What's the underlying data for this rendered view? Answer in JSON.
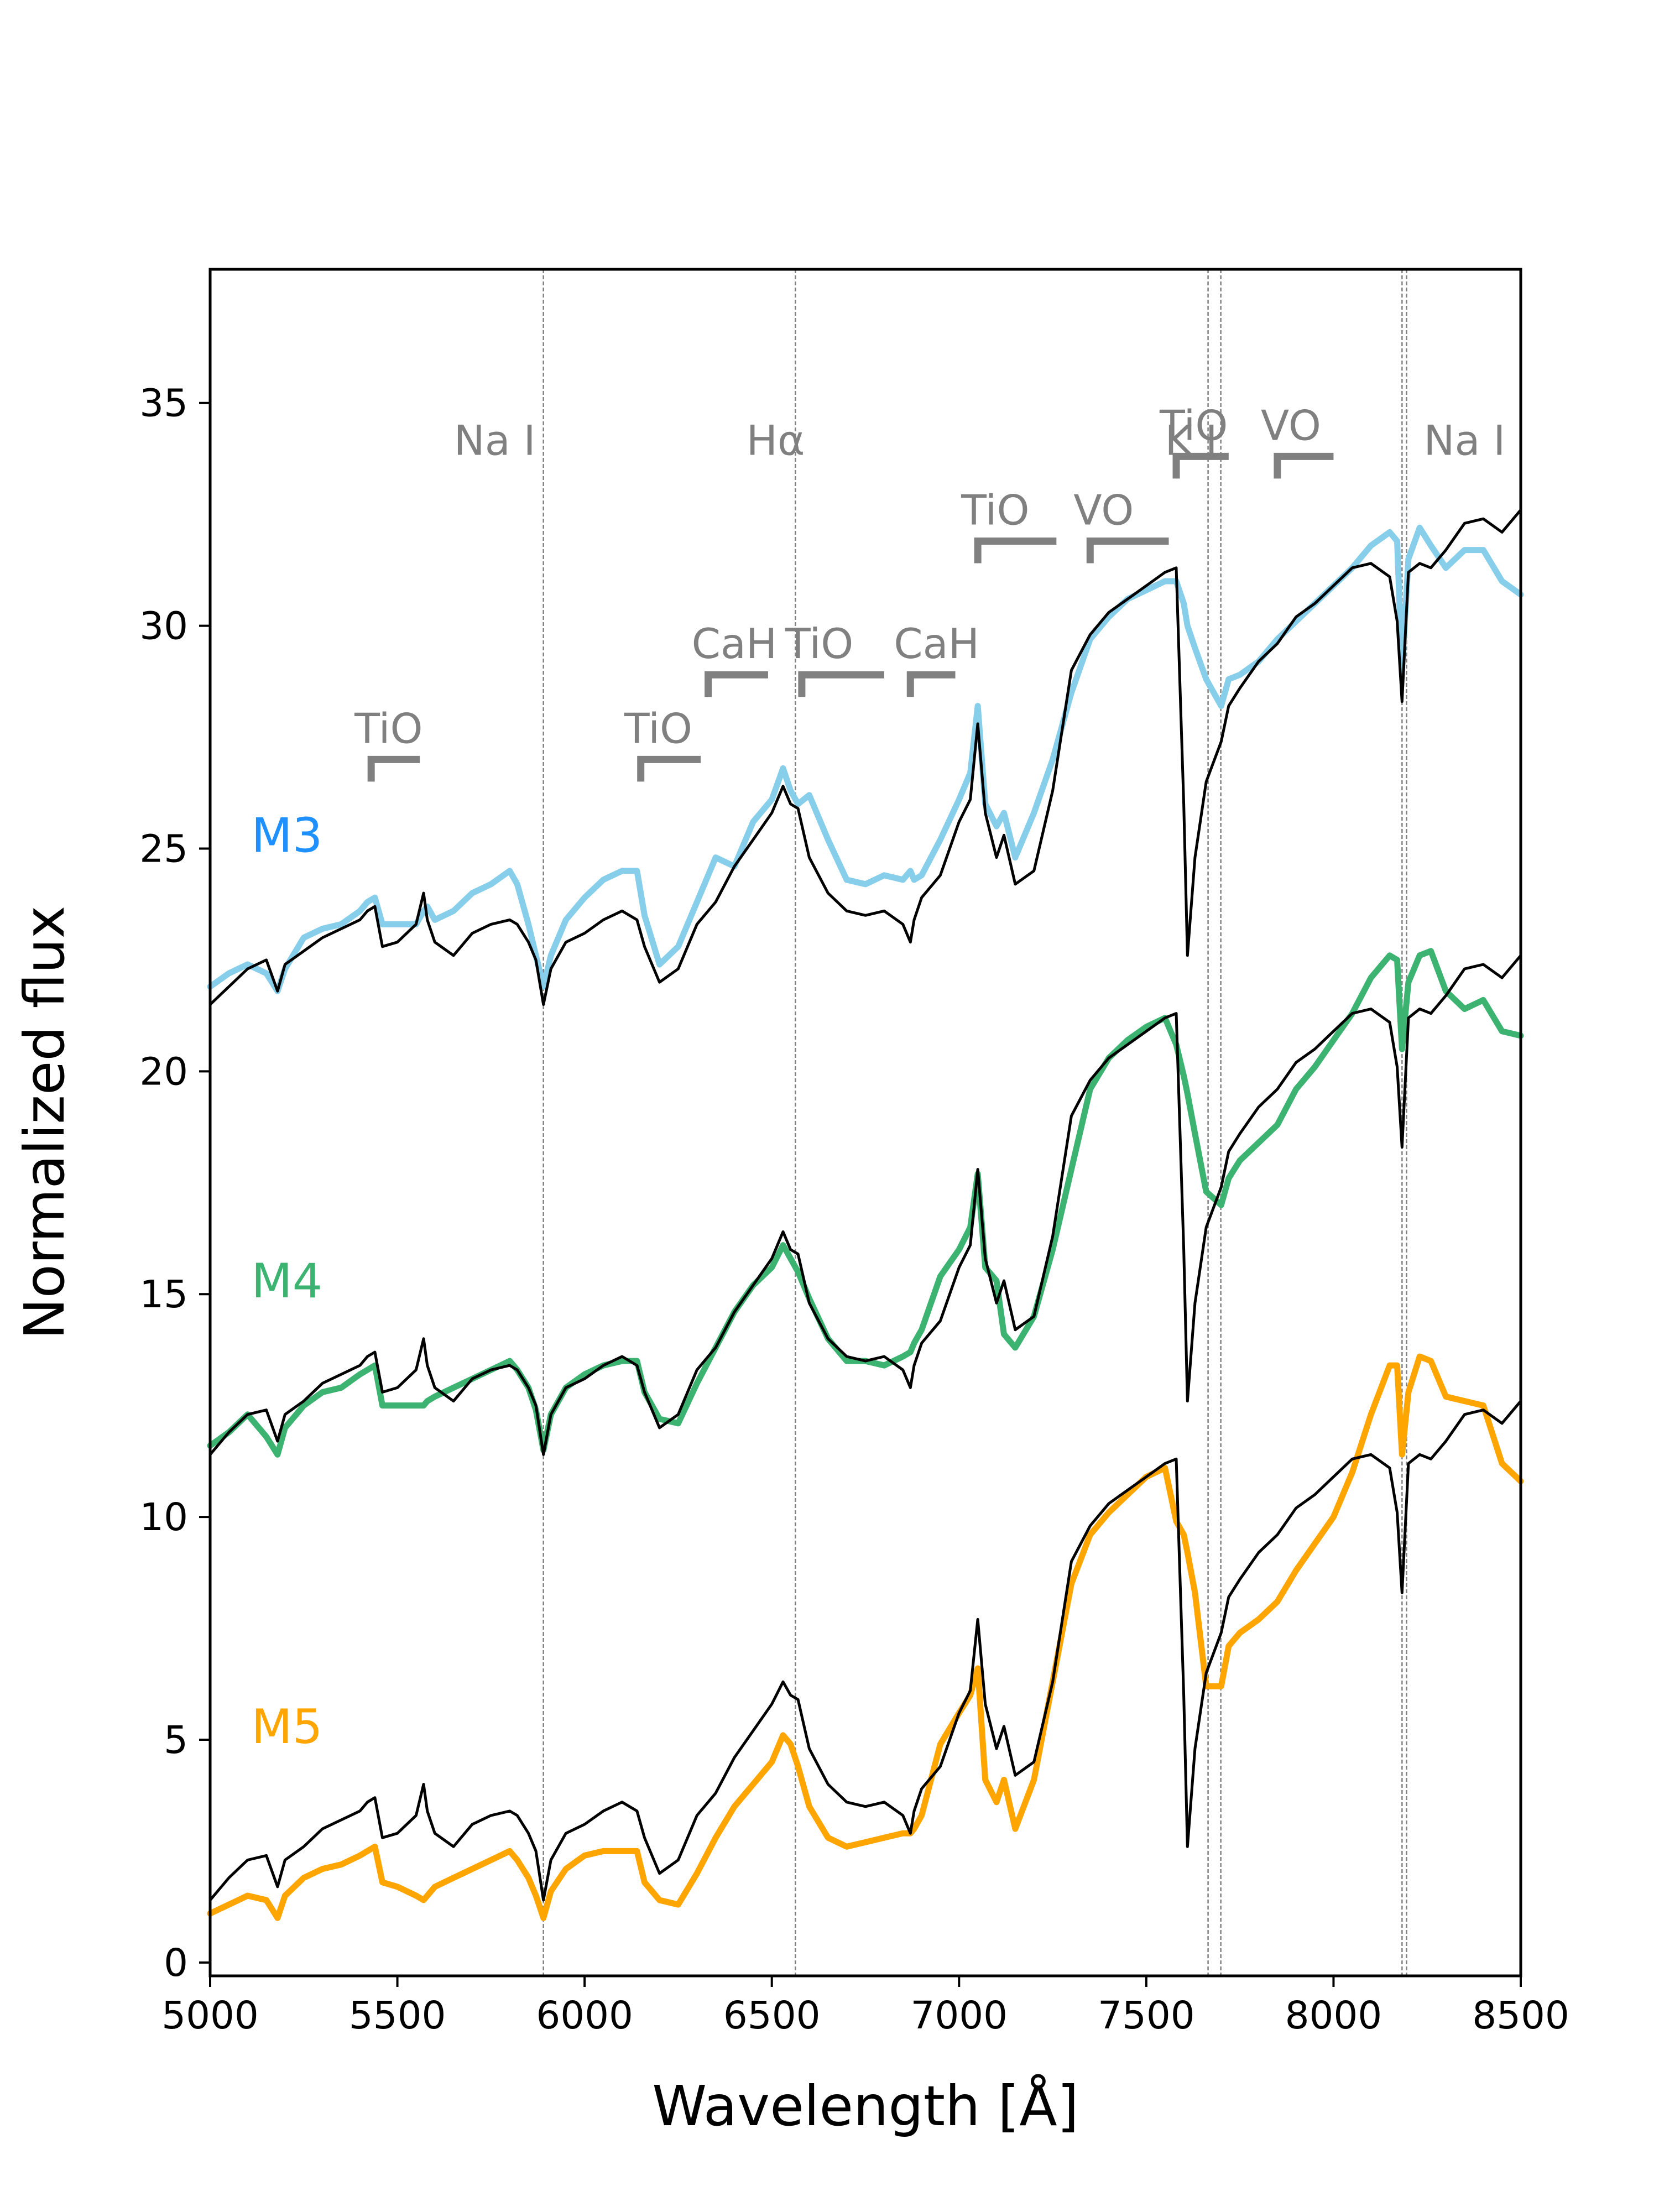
{
  "colors": {
    "M3": "#87ceeb",
    "M4": "#3cb371",
    "M5": "#ffa500",
    "template": "#000000",
    "annotation": "#808080"
  },
  "chart_data": {
    "type": "line",
    "title": "",
    "xlabel": "Wavelength [Å]",
    "ylabel": "Normalized flux",
    "xlim": [
      5000,
      8500
    ],
    "ylim": [
      -0.3,
      38
    ],
    "grid": false,
    "xticks": [
      5000,
      5500,
      6000,
      6500,
      7000,
      7500,
      8000,
      8500
    ],
    "yticks": [
      0,
      5,
      10,
      15,
      20,
      25,
      30,
      35
    ],
    "series_labels": [
      {
        "text": "M3",
        "x": 5110,
        "y": 25.3,
        "color": "#1e90ff"
      },
      {
        "text": "M4",
        "x": 5110,
        "y": 15.3,
        "color": "#3cb371"
      },
      {
        "text": "M5",
        "x": 5110,
        "y": 5.3,
        "color": "#ffa500"
      }
    ],
    "line_markers": [
      {
        "label": "Na I",
        "wavelengths": [
          5890
        ],
        "label_x": 5760
      },
      {
        "label": "Hα",
        "wavelengths": [
          6563
        ],
        "label_x": 6510
      },
      {
        "label": "K I",
        "wavelengths": [
          7665,
          7699
        ],
        "label_x": 7620
      },
      {
        "label": "Na I",
        "wavelengths": [
          8183,
          8195
        ],
        "label_x": 8350
      }
    ],
    "bands": [
      {
        "label": "TiO",
        "x_start": 5430,
        "x_end": 5560,
        "y": 27.0
      },
      {
        "label": "TiO",
        "x_start": 6150,
        "x_end": 6310,
        "y": 27.0
      },
      {
        "label": "CaH",
        "x_start": 6330,
        "x_end": 6490,
        "y": 28.9
      },
      {
        "label": "TiO",
        "x_start": 6580,
        "x_end": 6800,
        "y": 28.9
      },
      {
        "label": "CaH",
        "x_start": 6870,
        "x_end": 6990,
        "y": 28.9
      },
      {
        "label": "TiO",
        "x_start": 7050,
        "x_end": 7260,
        "y": 31.9
      },
      {
        "label": "VO",
        "x_start": 7350,
        "x_end": 7560,
        "y": 31.9
      },
      {
        "label": "TiO",
        "x_start": 7580,
        "x_end": 7720,
        "y": 33.8
      },
      {
        "label": "VO",
        "x_start": 7850,
        "x_end": 8000,
        "y": 33.8
      }
    ],
    "x": [
      5000,
      5050,
      5100,
      5150,
      5180,
      5200,
      5250,
      5300,
      5350,
      5400,
      5420,
      5440,
      5460,
      5500,
      5550,
      5570,
      5580,
      5600,
      5650,
      5700,
      5750,
      5800,
      5820,
      5850,
      5870,
      5890,
      5910,
      5950,
      6000,
      6050,
      6100,
      6140,
      6160,
      6200,
      6250,
      6300,
      6350,
      6400,
      6450,
      6500,
      6530,
      6550,
      6570,
      6600,
      6650,
      6700,
      6750,
      6800,
      6850,
      6870,
      6880,
      6900,
      6950,
      7000,
      7030,
      7050,
      7070,
      7100,
      7120,
      7150,
      7200,
      7250,
      7300,
      7350,
      7400,
      7450,
      7500,
      7550,
      7580,
      7600,
      7610,
      7630,
      7660,
      7700,
      7720,
      7750,
      7800,
      7850,
      7900,
      7950,
      8000,
      8050,
      8100,
      8150,
      8170,
      8183,
      8200,
      8230,
      8260,
      8300,
      8350,
      8400,
      8450,
      8500
    ],
    "series": [
      {
        "name": "M3",
        "role": "standard",
        "values": [
          21.9,
          22.2,
          22.4,
          22.2,
          21.8,
          22.3,
          23.0,
          23.2,
          23.3,
          23.6,
          23.8,
          23.9,
          23.3,
          23.3,
          23.3,
          23.6,
          23.7,
          23.4,
          23.6,
          24.0,
          24.2,
          24.5,
          24.2,
          23.3,
          22.6,
          21.9,
          22.6,
          23.4,
          23.9,
          24.3,
          24.5,
          24.5,
          23.5,
          22.4,
          22.8,
          23.8,
          24.8,
          24.6,
          25.6,
          26.1,
          26.8,
          26.3,
          26.0,
          26.2,
          25.2,
          24.3,
          24.2,
          24.4,
          24.3,
          24.5,
          24.3,
          24.4,
          25.2,
          26.1,
          26.7,
          28.2,
          26.0,
          25.5,
          25.8,
          24.8,
          25.8,
          27.0,
          28.5,
          29.7,
          30.2,
          30.6,
          30.8,
          31.0,
          31.0,
          30.5,
          30.0,
          29.5,
          28.8,
          28.2,
          28.8,
          28.9,
          29.2,
          29.7,
          30.1,
          30.5,
          30.9,
          31.3,
          31.8,
          32.1,
          31.9,
          29.0,
          31.5,
          32.2,
          31.8,
          31.3,
          31.7,
          31.7,
          31.0,
          30.7
        ]
      },
      {
        "name": "M3",
        "role": "template",
        "values": [
          21.5,
          21.9,
          22.3,
          22.5,
          21.8,
          22.4,
          22.7,
          23.0,
          23.2,
          23.4,
          23.6,
          23.7,
          22.8,
          22.9,
          23.3,
          24.0,
          23.4,
          22.9,
          22.6,
          23.1,
          23.3,
          23.4,
          23.3,
          22.9,
          22.5,
          21.5,
          22.3,
          22.9,
          23.1,
          23.4,
          23.6,
          23.4,
          22.8,
          22.0,
          22.3,
          23.3,
          23.8,
          24.6,
          25.2,
          25.8,
          26.4,
          26.0,
          25.9,
          24.8,
          24.0,
          23.6,
          23.5,
          23.6,
          23.3,
          22.9,
          23.4,
          23.9,
          24.4,
          25.6,
          26.1,
          27.8,
          25.8,
          24.8,
          25.3,
          24.2,
          24.5,
          26.3,
          29.0,
          29.8,
          30.3,
          30.6,
          30.9,
          31.2,
          31.3,
          26.0,
          22.6,
          24.8,
          26.5,
          27.4,
          28.2,
          28.6,
          29.2,
          29.6,
          30.2,
          30.5,
          30.9,
          31.3,
          31.4,
          31.1,
          30.1,
          28.3,
          31.2,
          31.4,
          31.3,
          31.7,
          32.3,
          32.4,
          32.1,
          32.6
        ]
      },
      {
        "name": "M4",
        "role": "standard",
        "values": [
          11.6,
          11.9,
          12.3,
          11.8,
          11.4,
          12.0,
          12.5,
          12.8,
          12.9,
          13.2,
          13.3,
          13.4,
          12.5,
          12.5,
          12.5,
          12.5,
          12.6,
          12.7,
          12.9,
          13.1,
          13.3,
          13.5,
          13.3,
          12.9,
          12.4,
          11.5,
          12.3,
          12.9,
          13.2,
          13.4,
          13.5,
          13.5,
          12.8,
          12.2,
          12.1,
          13.0,
          13.8,
          14.6,
          15.2,
          15.6,
          16.1,
          15.8,
          15.5,
          14.9,
          14.0,
          13.5,
          13.5,
          13.4,
          13.6,
          13.7,
          13.9,
          14.2,
          15.4,
          16.0,
          16.5,
          17.7,
          15.6,
          15.3,
          14.1,
          13.8,
          14.5,
          16.0,
          17.8,
          19.6,
          20.3,
          20.7,
          21.0,
          21.2,
          20.6,
          19.9,
          19.5,
          18.6,
          17.3,
          17.0,
          17.6,
          18.0,
          18.4,
          18.8,
          19.6,
          20.1,
          20.7,
          21.3,
          22.1,
          22.6,
          22.5,
          20.5,
          22.0,
          22.6,
          22.7,
          21.8,
          21.4,
          21.6,
          20.9,
          20.8
        ]
      },
      {
        "name": "M4",
        "role": "template",
        "values": [
          11.4,
          11.9,
          12.3,
          12.4,
          11.7,
          12.3,
          12.6,
          13.0,
          13.2,
          13.4,
          13.6,
          13.7,
          12.8,
          12.9,
          13.3,
          14.0,
          13.4,
          12.9,
          12.6,
          13.1,
          13.3,
          13.4,
          13.3,
          12.9,
          12.5,
          11.4,
          12.3,
          12.9,
          13.1,
          13.4,
          13.6,
          13.4,
          12.8,
          12.0,
          12.3,
          13.3,
          13.8,
          14.6,
          15.2,
          15.8,
          16.4,
          16.0,
          15.9,
          14.8,
          14.0,
          13.6,
          13.5,
          13.6,
          13.3,
          12.9,
          13.4,
          13.9,
          14.4,
          15.6,
          16.1,
          17.8,
          15.8,
          14.8,
          15.3,
          14.2,
          14.5,
          16.3,
          19.0,
          19.8,
          20.3,
          20.6,
          20.9,
          21.2,
          21.3,
          16.0,
          12.6,
          14.8,
          16.5,
          17.4,
          18.2,
          18.6,
          19.2,
          19.6,
          20.2,
          20.5,
          20.9,
          21.3,
          21.4,
          21.1,
          20.1,
          18.3,
          21.2,
          21.4,
          21.3,
          21.7,
          22.3,
          22.4,
          22.1,
          22.6
        ]
      },
      {
        "name": "M5",
        "role": "standard",
        "values": [
          1.1,
          1.3,
          1.5,
          1.4,
          1.0,
          1.5,
          1.9,
          2.1,
          2.2,
          2.4,
          2.5,
          2.6,
          1.8,
          1.7,
          1.5,
          1.4,
          1.5,
          1.7,
          1.9,
          2.1,
          2.3,
          2.5,
          2.3,
          1.9,
          1.5,
          1.0,
          1.6,
          2.1,
          2.4,
          2.5,
          2.5,
          2.5,
          1.8,
          1.4,
          1.3,
          2.0,
          2.8,
          3.5,
          4.0,
          4.5,
          5.1,
          4.9,
          4.4,
          3.5,
          2.8,
          2.6,
          2.7,
          2.8,
          2.9,
          2.9,
          3.0,
          3.3,
          4.9,
          5.6,
          6.0,
          6.6,
          4.1,
          3.6,
          4.1,
          3.0,
          4.1,
          6.3,
          8.5,
          9.6,
          10.1,
          10.5,
          10.9,
          11.1,
          9.9,
          9.6,
          9.2,
          8.3,
          6.2,
          6.2,
          7.1,
          7.4,
          7.7,
          8.1,
          8.8,
          9.4,
          10.0,
          11.0,
          12.3,
          13.4,
          13.4,
          11.4,
          12.8,
          13.6,
          13.5,
          12.7,
          12.6,
          12.5,
          11.2,
          10.8
        ]
      },
      {
        "name": "M5",
        "role": "template",
        "values": [
          1.4,
          1.9,
          2.3,
          2.4,
          1.7,
          2.3,
          2.6,
          3.0,
          3.2,
          3.4,
          3.6,
          3.7,
          2.8,
          2.9,
          3.3,
          4.0,
          3.4,
          2.9,
          2.6,
          3.1,
          3.3,
          3.4,
          3.3,
          2.9,
          2.5,
          1.4,
          2.3,
          2.9,
          3.1,
          3.4,
          3.6,
          3.4,
          2.8,
          2.0,
          2.3,
          3.3,
          3.8,
          4.6,
          5.2,
          5.8,
          6.3,
          6.0,
          5.9,
          4.8,
          4.0,
          3.6,
          3.5,
          3.6,
          3.3,
          2.9,
          3.4,
          3.9,
          4.4,
          5.6,
          6.1,
          7.7,
          5.8,
          4.8,
          5.3,
          4.2,
          4.5,
          6.3,
          9.0,
          9.8,
          10.3,
          10.6,
          10.9,
          11.2,
          11.3,
          6.0,
          2.6,
          4.8,
          6.5,
          7.4,
          8.2,
          8.6,
          9.2,
          9.6,
          10.2,
          10.5,
          10.9,
          11.3,
          11.4,
          11.1,
          10.1,
          8.3,
          11.2,
          11.4,
          11.3,
          11.7,
          12.3,
          12.4,
          12.1,
          12.6
        ]
      }
    ]
  }
}
